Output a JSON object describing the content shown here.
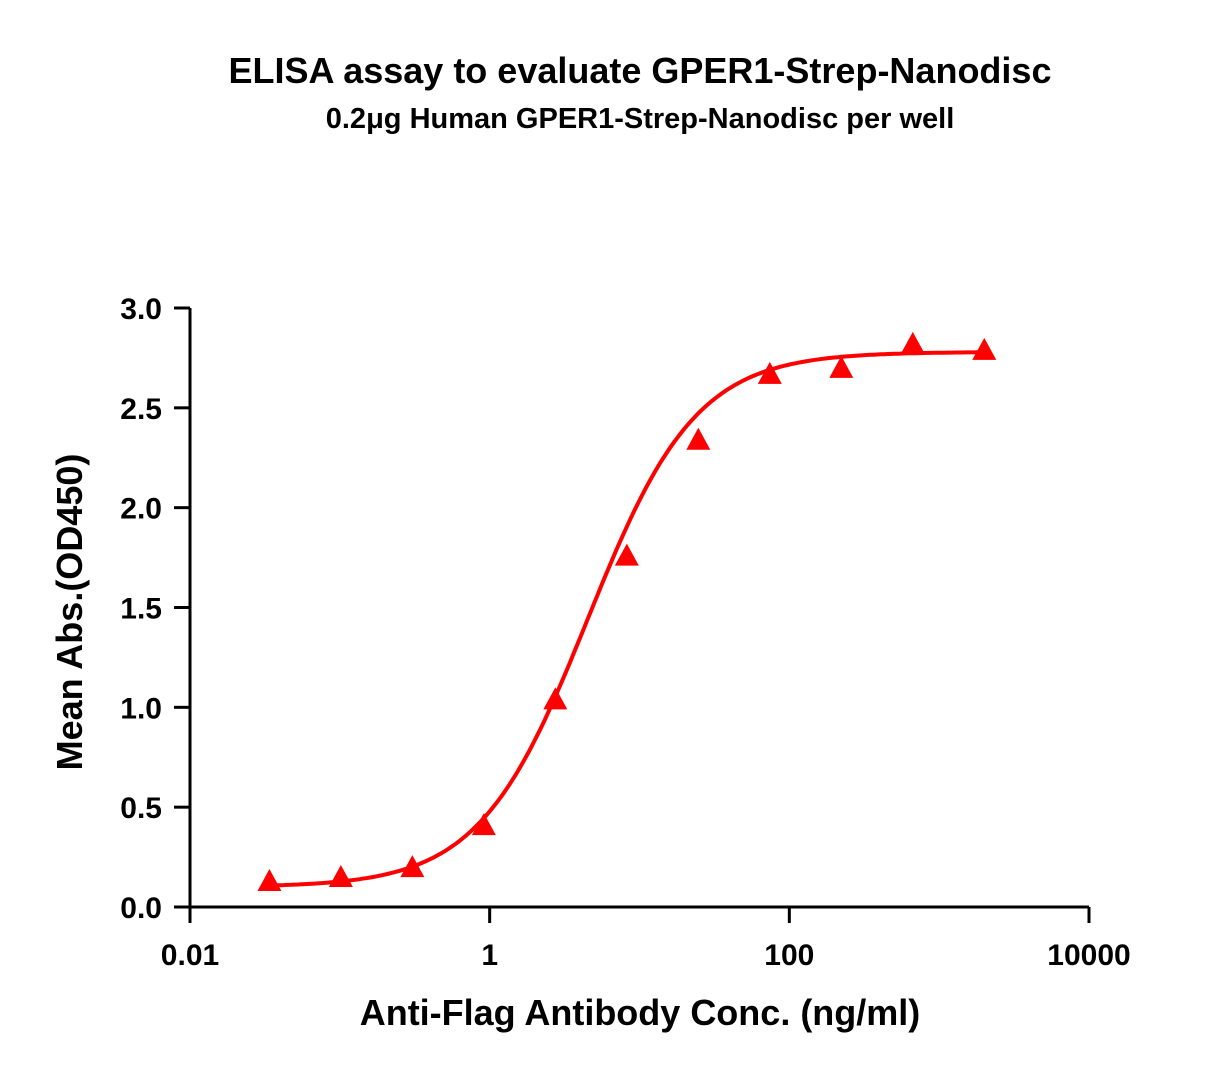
{
  "chart_data": {
    "type": "scatter",
    "title": "ELISA assay to evaluate GPER1-Strep-Nanodisc",
    "subtitle": "0.2μg Human GPER1-Strep-Nanodisc per well",
    "xlabel": "Anti-Flag Antibody Conc. (ng/ml)",
    "ylabel": "Mean Abs.(OD450)",
    "x_scale": "log",
    "xlim": [
      0.01,
      10000
    ],
    "ylim": [
      0,
      3.0
    ],
    "x_ticks": [
      "0.01",
      "1",
      "100",
      "10000"
    ],
    "y_ticks": [
      "0.0",
      "0.5",
      "1.0",
      "1.5",
      "2.0",
      "2.5",
      "3.0"
    ],
    "grid": false,
    "marker": "triangle",
    "color": "#ff0000",
    "fit_curve": "sigmoidal",
    "series": [
      {
        "x": [
          0.0339,
          0.1016,
          0.3048,
          0.9145,
          2.743,
          8.23,
          24.69,
          74.07,
          222.2,
          666.7,
          2000
        ],
        "y": [
          0.12,
          0.14,
          0.19,
          0.4,
          1.03,
          1.75,
          2.33,
          2.66,
          2.69,
          2.81,
          2.78
        ]
      }
    ]
  }
}
